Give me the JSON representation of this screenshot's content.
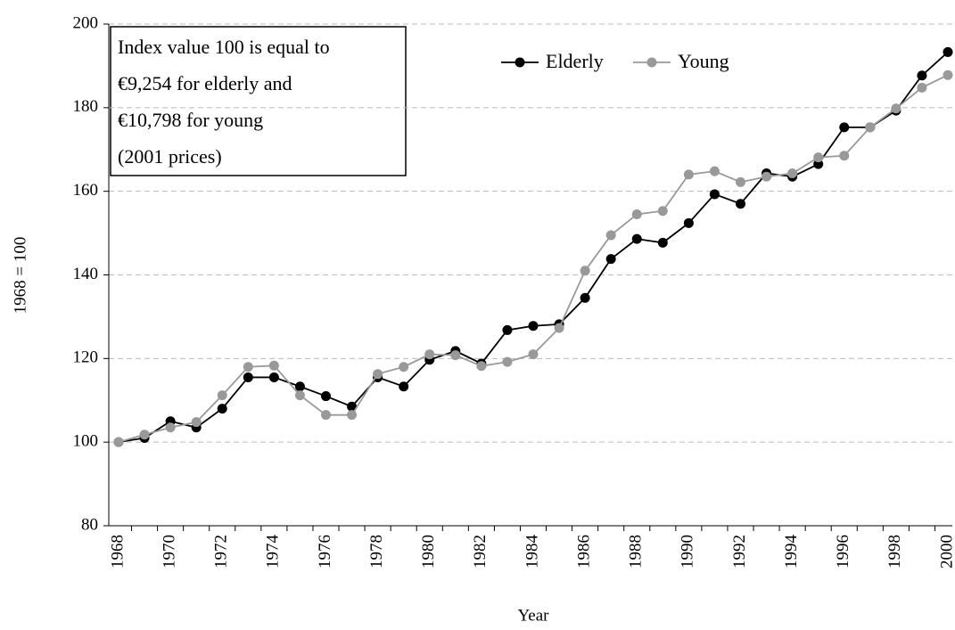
{
  "chart_data": {
    "type": "line",
    "x_label": "Year",
    "y_label": "1968 = 100",
    "annotation": [
      "Index value 100 is equal to",
      "€9,254 for elderly and",
      "€10,798 for young",
      "(2001 prices)"
    ],
    "categories": [
      "1968",
      null,
      "1970",
      null,
      "1972",
      null,
      "1974",
      null,
      "1976",
      null,
      "1978",
      null,
      "1980",
      null,
      "1982",
      null,
      "1984",
      null,
      "1986",
      null,
      "1988",
      null,
      "1990",
      null,
      "1992",
      null,
      "1994",
      null,
      "1996",
      null,
      "1998",
      null,
      "2000"
    ],
    "series": [
      {
        "name": "Elderly",
        "color": "#000000",
        "values": [
          100,
          101,
          105,
          103.5,
          108,
          115.5,
          115.5,
          113.3,
          111,
          108.5,
          115.5,
          113.3,
          119.7,
          121.8,
          118.8,
          126.8,
          127.8,
          128.2,
          134.5,
          143.8,
          148.6,
          147.7,
          152.4,
          159.3,
          157,
          164.3,
          163.5,
          166.5,
          175.3,
          175.3,
          179.3,
          187.7,
          193.3
        ]
      },
      {
        "name": "Young",
        "color": "#999999",
        "values": [
          100,
          101.8,
          103.5,
          104.8,
          111.2,
          118,
          118.3,
          111.2,
          106.5,
          106.5,
          116.3,
          118,
          121,
          120.8,
          118.2,
          119.2,
          121,
          127.3,
          141,
          149.5,
          154.5,
          155.3,
          164,
          164.8,
          162.2,
          163.5,
          164.3,
          168.1,
          168.5,
          175.3,
          179.8,
          184.8,
          187.8
        ]
      }
    ],
    "ylim": [
      80,
      200
    ],
    "yticks": [
      80,
      100,
      120,
      140,
      160,
      180,
      200
    ],
    "grid": true,
    "legend": "top"
  }
}
